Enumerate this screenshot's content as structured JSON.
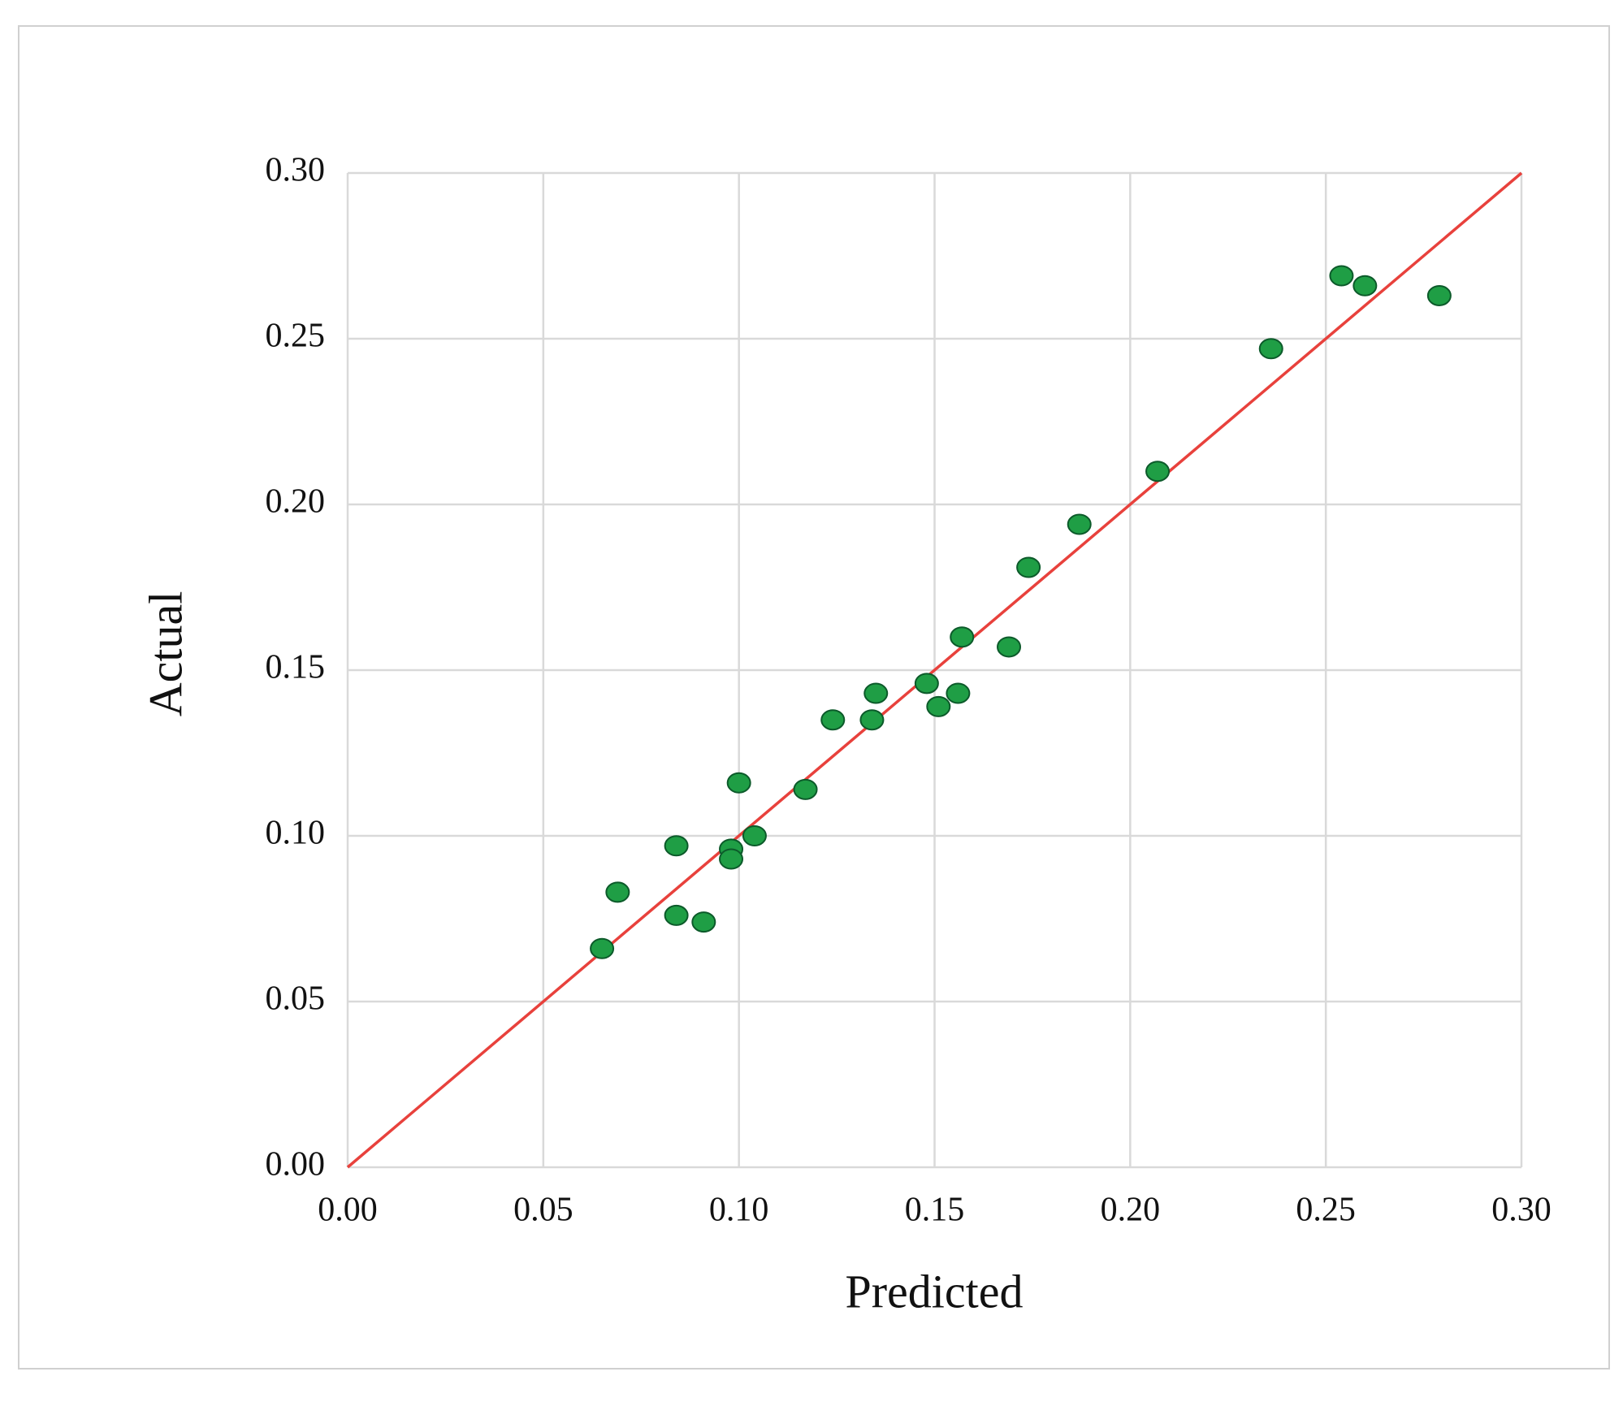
{
  "chart_data": {
    "type": "scatter",
    "x_label": "Predicted",
    "y_label": "Actual",
    "x": [
      0.065,
      0.069,
      0.084,
      0.084,
      0.091,
      0.098,
      0.098,
      0.1,
      0.104,
      0.117,
      0.124,
      0.134,
      0.135,
      0.148,
      0.151,
      0.156,
      0.157,
      0.169,
      0.174,
      0.187,
      0.207,
      0.236,
      0.254,
      0.26,
      0.279
    ],
    "y": [
      0.066,
      0.083,
      0.097,
      0.076,
      0.074,
      0.096,
      0.093,
      0.116,
      0.1,
      0.114,
      0.135,
      0.135,
      0.143,
      0.146,
      0.139,
      0.143,
      0.16,
      0.157,
      0.181,
      0.194,
      0.21,
      0.247,
      0.269,
      0.266,
      0.263
    ],
    "color": "#1f9e45",
    "identity_line": {
      "x": [
        0,
        0.3
      ],
      "y": [
        0,
        0.3
      ],
      "color": "#e8413c"
    },
    "xlim": [
      0,
      0.3
    ],
    "ylim": [
      0,
      0.3
    ],
    "xticks": [
      {
        "value": 0,
        "label": "0.00"
      },
      0.05,
      {
        "value": 0.1,
        "label": "0.10"
      },
      0.15,
      {
        "value": 0.2,
        "label": "0.20"
      },
      0.25,
      {
        "value": 0.3,
        "label": "0.30"
      }
    ],
    "yticks": [
      {
        "value": 0,
        "label": "0.00"
      },
      0.05,
      {
        "value": 0.1,
        "label": "0.10"
      },
      0.15,
      {
        "value": 0.2,
        "label": "0.20"
      },
      0.25,
      {
        "value": 0.3,
        "label": "0.30"
      }
    ],
    "grid": true
  }
}
